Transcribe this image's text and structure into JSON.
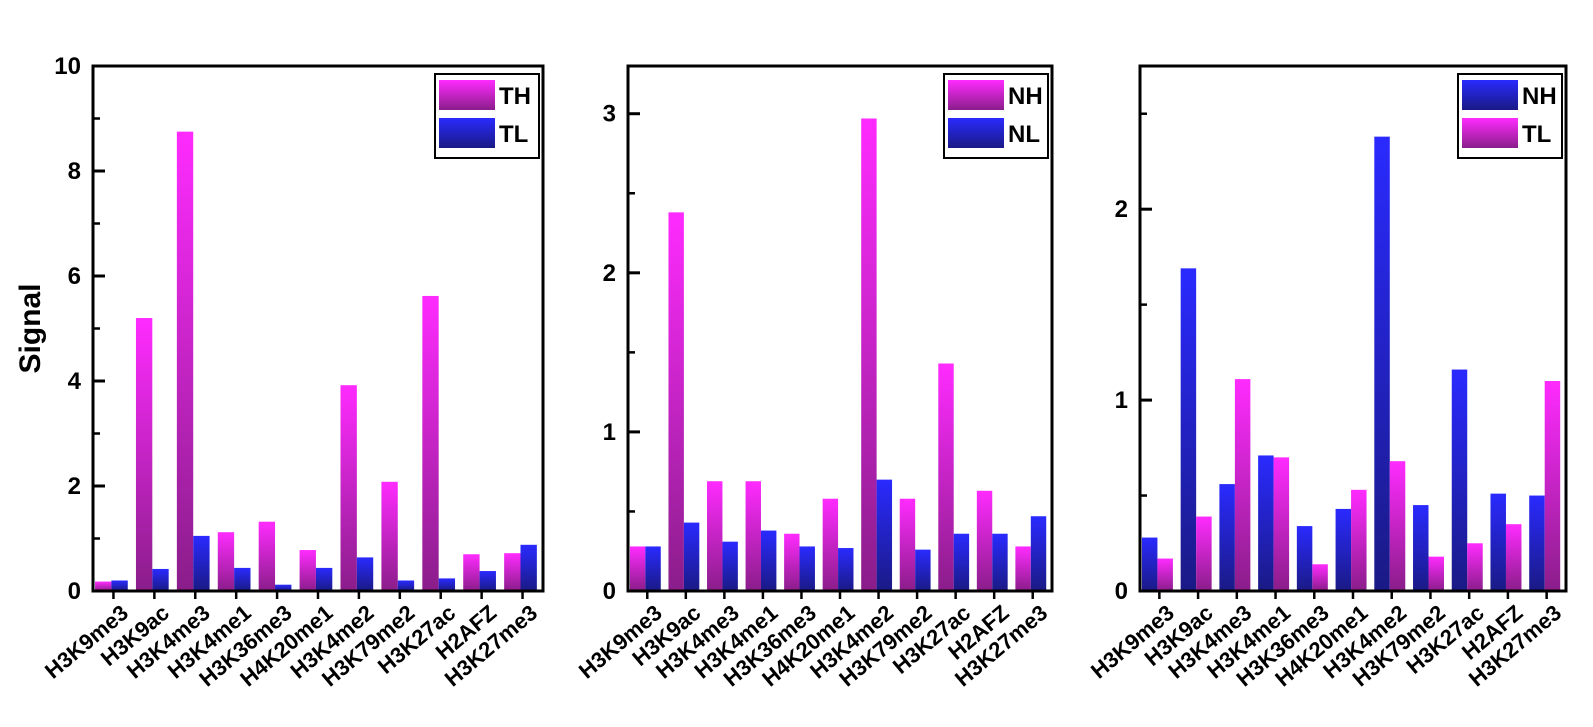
{
  "colors": {
    "magenta_top": "#ff2bff",
    "magenta_bottom": "#8a1d8a",
    "blue_top": "#2a2aff",
    "blue_bottom": "#1a1a85"
  },
  "chart_data": [
    {
      "type": "bar",
      "ylabel": "Signal",
      "ylim": [
        0,
        10
      ],
      "yticks": [
        0,
        2,
        4,
        6,
        8,
        10
      ],
      "categories": [
        "H3K9me3",
        "H3K9ac",
        "H3K4me3",
        "H3K4me1",
        "H3K36me3",
        "H4K20me1",
        "H3K4me2",
        "H3K79me2",
        "H3K27ac",
        "H2AFZ",
        "H3K27me3"
      ],
      "legend_position": "top-right",
      "series": [
        {
          "name": "TH",
          "color": "magenta",
          "values": [
            0.18,
            5.2,
            8.75,
            1.12,
            1.32,
            0.78,
            3.92,
            2.08,
            5.62,
            0.7,
            0.72
          ]
        },
        {
          "name": "TL",
          "color": "blue",
          "values": [
            0.2,
            0.42,
            1.05,
            0.44,
            0.12,
            0.44,
            0.64,
            0.2,
            0.24,
            0.38,
            0.88
          ]
        }
      ]
    },
    {
      "type": "bar",
      "ylabel": "",
      "ylim": [
        0,
        3.3
      ],
      "yticks": [
        0,
        1,
        2,
        3
      ],
      "categories": [
        "H3K9me3",
        "H3K9ac",
        "H3K4me3",
        "H3K4me1",
        "H3K36me3",
        "H4K20me1",
        "H3K4me2",
        "H3K79me2",
        "H3K27ac",
        "H2AFZ",
        "H3K27me3"
      ],
      "legend_position": "top-right",
      "series": [
        {
          "name": "NH",
          "color": "magenta",
          "values": [
            0.28,
            2.38,
            0.69,
            0.69,
            0.36,
            0.58,
            2.97,
            0.58,
            1.43,
            0.63,
            0.28
          ]
        },
        {
          "name": "NL",
          "color": "blue",
          "values": [
            0.28,
            0.43,
            0.31,
            0.38,
            0.28,
            0.27,
            0.7,
            0.26,
            0.36,
            0.36,
            0.47
          ]
        }
      ]
    },
    {
      "type": "bar",
      "ylabel": "",
      "ylim": [
        0,
        2.75
      ],
      "yticks": [
        0,
        1,
        2
      ],
      "categories": [
        "H3K9me3",
        "H3K9ac",
        "H3K4me3",
        "H3K4me1",
        "H3K36me3",
        "H4K20me1",
        "H3K4me2",
        "H3K79me2",
        "H3K27ac",
        "H2AFZ",
        "H3K27me3"
      ],
      "legend_position": "top-right",
      "series": [
        {
          "name": "NH",
          "color": "blue",
          "values": [
            0.28,
            1.69,
            0.56,
            0.71,
            0.34,
            0.43,
            2.38,
            0.45,
            1.16,
            0.51,
            0.5
          ]
        },
        {
          "name": "TL",
          "color": "magenta",
          "values": [
            0.17,
            0.39,
            1.11,
            0.7,
            0.14,
            0.53,
            0.68,
            0.18,
            0.25,
            0.35,
            1.1
          ]
        }
      ]
    }
  ]
}
